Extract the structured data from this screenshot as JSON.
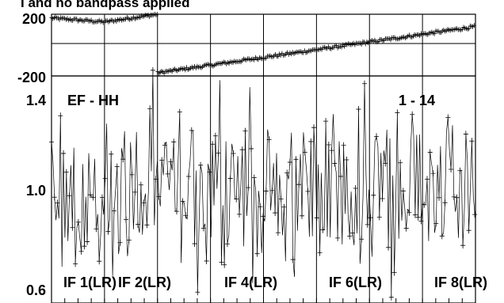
{
  "header": {
    "title_fragment": "I and no bandpass applied"
  },
  "phase_panel": {
    "ytick_labels": [
      "200",
      "-200"
    ],
    "ylim": [
      -200,
      200
    ]
  },
  "amp_panel": {
    "ytick_labels": [
      "1.4",
      "1.0",
      "0.6"
    ],
    "ylim": [
      0.6,
      1.4
    ],
    "annotation_left": "EF - HH",
    "annotation_right": "1 - 14",
    "if_labels": [
      "IF 1(LR)",
      "IF 2(LR)",
      "IF 4(LR)",
      "IF 6(LR)",
      "IF 8(LR)"
    ]
  },
  "chart_data": [
    {
      "type": "scatter",
      "panel": "phase",
      "description_axis": "channel index across 8 IFs",
      "ylim": [
        -200,
        200
      ],
      "x_range": [
        0,
        256
      ],
      "if_boundaries": [
        0,
        32,
        64,
        96,
        128,
        160,
        192,
        224,
        256
      ],
      "segments": [
        {
          "x": [
            0,
            32
          ],
          "y": [
            175,
            150
          ]
        },
        {
          "x": [
            32,
            64
          ],
          "y": [
            150,
            200
          ]
        },
        {
          "x": [
            64,
            256
          ],
          "y": [
            -180,
            120
          ]
        }
      ],
      "reference_line_y": 0
    },
    {
      "type": "line",
      "panel": "amplitude",
      "ylim": [
        0.6,
        1.4
      ],
      "x_range": [
        0,
        256
      ],
      "if_boundaries": [
        0,
        32,
        64,
        96,
        128,
        160,
        192,
        224,
        256
      ],
      "mean_value": 1.0,
      "scatter_range": [
        0.6,
        1.42
      ]
    }
  ]
}
